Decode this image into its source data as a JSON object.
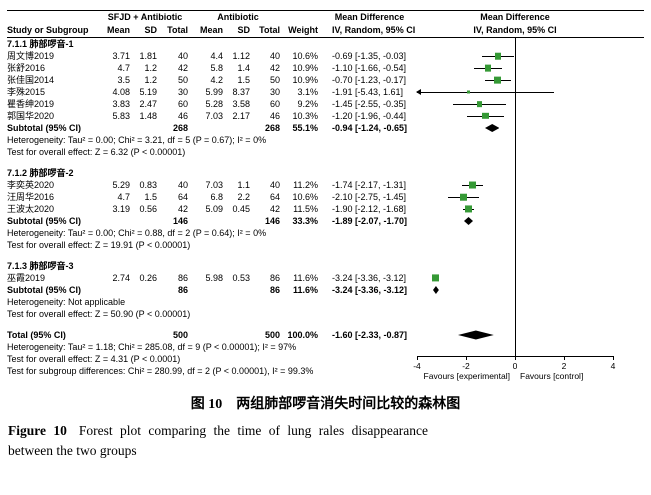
{
  "colors": {
    "marker": "#359935",
    "diamond": "#000000",
    "line": "#000000"
  },
  "chart_data": {
    "type": "forest",
    "header": {
      "group1": "SFJD + Antibiotic",
      "group2": "Antibiotic",
      "study": "Study or Subgroup",
      "mean": "Mean",
      "sd": "SD",
      "total": "Total",
      "weight": "Weight",
      "ci": "IV, Random, 95% CI",
      "md": "Mean Difference"
    },
    "axis": {
      "min": -4,
      "max": 4,
      "ticks": [
        -4,
        -2,
        0,
        2,
        4
      ],
      "favours_left": "Favours [experimental]",
      "favours_right": "Favours [control]"
    },
    "rows": [
      {
        "type": "subgroup",
        "label": "7.1.1 肺部啰音-1"
      },
      {
        "type": "study",
        "study": "周文博2019",
        "mean1": "3.71",
        "sd1": "1.81",
        "total1": "40",
        "mean2": "4.4",
        "sd2": "1.12",
        "total2": "40",
        "weight": "10.6%",
        "ci_text": "-0.69 [-1.35, -0.03]",
        "md": -0.69,
        "lo": -1.35,
        "hi": -0.03,
        "w": 10.6
      },
      {
        "type": "study",
        "study": "张舒2016",
        "mean1": "4.7",
        "sd1": "1.2",
        "total1": "42",
        "mean2": "5.8",
        "sd2": "1.4",
        "total2": "42",
        "weight": "10.9%",
        "ci_text": "-1.10 [-1.66, -0.54]",
        "md": -1.1,
        "lo": -1.66,
        "hi": -0.54,
        "w": 10.9
      },
      {
        "type": "study",
        "study": "张佳国2014",
        "mean1": "3.5",
        "sd1": "1.2",
        "total1": "50",
        "mean2": "4.2",
        "sd2": "1.5",
        "total2": "50",
        "weight": "10.9%",
        "ci_text": "-0.70 [-1.23, -0.17]",
        "md": -0.7,
        "lo": -1.23,
        "hi": -0.17,
        "w": 10.9
      },
      {
        "type": "study",
        "study": "李殊2015",
        "mean1": "4.08",
        "sd1": "5.19",
        "total1": "30",
        "mean2": "5.99",
        "sd2": "8.37",
        "total2": "30",
        "weight": "3.1%",
        "ci_text": "-1.91 [-5.43, 1.61]",
        "md": -1.91,
        "lo": -5.43,
        "hi": 1.61,
        "w": 3.1
      },
      {
        "type": "study",
        "study": "瞿香绅2019",
        "mean1": "3.83",
        "sd1": "2.47",
        "total1": "60",
        "mean2": "5.28",
        "sd2": "3.58",
        "total2": "60",
        "weight": "9.2%",
        "ci_text": "-1.45 [-2.55, -0.35]",
        "md": -1.45,
        "lo": -2.55,
        "hi": -0.35,
        "w": 9.2
      },
      {
        "type": "study",
        "study": "郭国华2020",
        "mean1": "5.83",
        "sd1": "1.48",
        "total1": "46",
        "mean2": "7.03",
        "sd2": "2.17",
        "total2": "46",
        "weight": "10.3%",
        "ci_text": "-1.20 [-1.96, -0.44]",
        "md": -1.2,
        "lo": -1.96,
        "hi": -0.44,
        "w": 10.3
      },
      {
        "type": "subtotal",
        "label": "Subtotal (95% CI)",
        "total1": "268",
        "total2": "268",
        "weight": "55.1%",
        "ci_text": "-0.94 [-1.24, -0.65]",
        "md": -0.94,
        "lo": -1.24,
        "hi": -0.65
      },
      {
        "type": "note",
        "label": "Heterogeneity: Tau² = 0.00; Chi² = 3.21, df = 5 (P = 0.67); I² = 0%"
      },
      {
        "type": "note",
        "label": "Test for overall effect: Z = 6.32 (P < 0.00001)"
      },
      {
        "type": "blank"
      },
      {
        "type": "subgroup",
        "label": "7.1.2 肺部啰音-2"
      },
      {
        "type": "study",
        "study": "李奕英2020",
        "mean1": "5.29",
        "sd1": "0.83",
        "total1": "40",
        "mean2": "7.03",
        "sd2": "1.1",
        "total2": "40",
        "weight": "11.2%",
        "ci_text": "-1.74 [-2.17, -1.31]",
        "md": -1.74,
        "lo": -2.17,
        "hi": -1.31,
        "w": 11.2
      },
      {
        "type": "study",
        "study": "汪周华2016",
        "mean1": "4.7",
        "sd1": "1.5",
        "total1": "64",
        "mean2": "6.8",
        "sd2": "2.2",
        "total2": "64",
        "weight": "10.6%",
        "ci_text": "-2.10 [-2.75, -1.45]",
        "md": -2.1,
        "lo": -2.75,
        "hi": -1.45,
        "w": 10.6
      },
      {
        "type": "study",
        "study": "王波太2020",
        "mean1": "3.19",
        "sd1": "0.56",
        "total1": "42",
        "mean2": "5.09",
        "sd2": "0.45",
        "total2": "42",
        "weight": "11.5%",
        "ci_text": "-1.90 [-2.12, -1.68]",
        "md": -1.9,
        "lo": -2.12,
        "hi": -1.68,
        "w": 11.5
      },
      {
        "type": "subtotal",
        "label": "Subtotal (95% CI)",
        "total1": "146",
        "total2": "146",
        "weight": "33.3%",
        "ci_text": "-1.89 [-2.07, -1.70]",
        "md": -1.89,
        "lo": -2.07,
        "hi": -1.7
      },
      {
        "type": "note",
        "label": "Heterogeneity: Tau² = 0.00; Chi² = 0.88, df = 2 (P = 0.64); I² = 0%"
      },
      {
        "type": "note",
        "label": "Test for overall effect: Z = 19.91 (P < 0.00001)"
      },
      {
        "type": "blank"
      },
      {
        "type": "subgroup",
        "label": "7.1.3 肺部啰音-3"
      },
      {
        "type": "study",
        "study": "巫霞2019",
        "mean1": "2.74",
        "sd1": "0.26",
        "total1": "86",
        "mean2": "5.98",
        "sd2": "0.53",
        "total2": "86",
        "weight": "11.6%",
        "ci_text": "-3.24 [-3.36, -3.12]",
        "md": -3.24,
        "lo": -3.36,
        "hi": -3.12,
        "w": 11.6
      },
      {
        "type": "subtotal",
        "label": "Subtotal (95% CI)",
        "total1": "86",
        "total2": "86",
        "weight": "11.6%",
        "ci_text": "-3.24 [-3.36, -3.12]",
        "md": -3.24,
        "lo": -3.36,
        "hi": -3.12
      },
      {
        "type": "note",
        "label": "Heterogeneity: Not applicable"
      },
      {
        "type": "note",
        "label": "Test for overall effect: Z = 50.90 (P < 0.00001)"
      },
      {
        "type": "blank"
      },
      {
        "type": "total",
        "label": "Total (95% CI)",
        "total1": "500",
        "total2": "500",
        "weight": "100.0%",
        "ci_text": "-1.60 [-2.33, -0.87]",
        "md": -1.6,
        "lo": -2.33,
        "hi": -0.87
      },
      {
        "type": "note",
        "label": "Heterogeneity: Tau² = 1.18; Chi² = 285.08, df = 9 (P < 0.00001); I² = 97%"
      },
      {
        "type": "note",
        "label": "Test for overall effect: Z = 4.31 (P < 0.0001)"
      },
      {
        "type": "note",
        "label": "Test for subgroup differences: Chi² = 280.99, df = 2 (P < 0.00001), I² = 99.3%"
      }
    ]
  },
  "caption": {
    "cn": "图 10　两组肺部啰音消失时间比较的森林图",
    "en_label": "Figure 10",
    "en_text1": "Forest plot comparing the time of lung rales disappearance",
    "en_text2": "between the two groups"
  }
}
